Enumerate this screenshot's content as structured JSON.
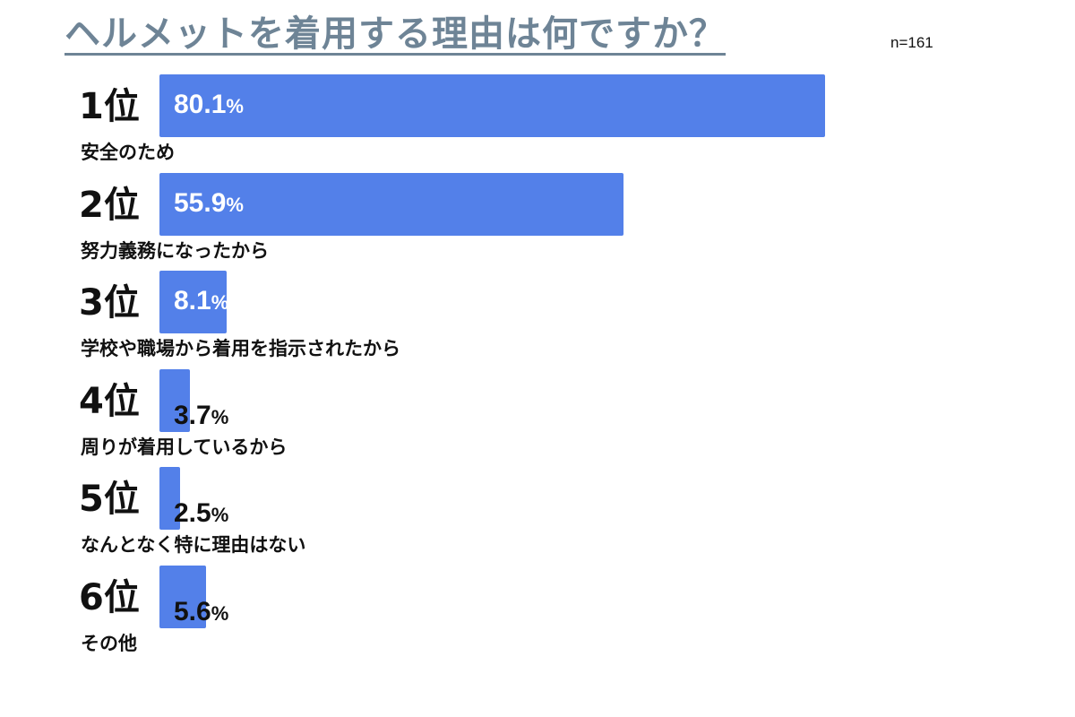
{
  "title": "ヘルメットを着用する理由は何ですか？",
  "sample_size_label": "n=161",
  "colors": {
    "bar": "#5380e9",
    "title": "#6e8496"
  },
  "chart_data": {
    "type": "bar",
    "orientation": "horizontal",
    "title": "ヘルメットを着用する理由は何ですか？",
    "unit": "%",
    "xlim": [
      0,
      100
    ],
    "grid": false,
    "categories": [
      "安全のため",
      "努力義務になったから",
      "学校や職場から着用を指示されたから",
      "周りが着用しているから",
      "なんとなく特に理由はない",
      "その他"
    ],
    "ranks": [
      "1位",
      "2位",
      "3位",
      "4位",
      "5位",
      "6位"
    ],
    "values": [
      80.1,
      55.9,
      8.1,
      3.7,
      2.5,
      5.6
    ],
    "value_labels": [
      "80.1",
      "55.9",
      "8.1",
      "3.7",
      "2.5",
      "5.6"
    ],
    "percent_sign": "%"
  }
}
